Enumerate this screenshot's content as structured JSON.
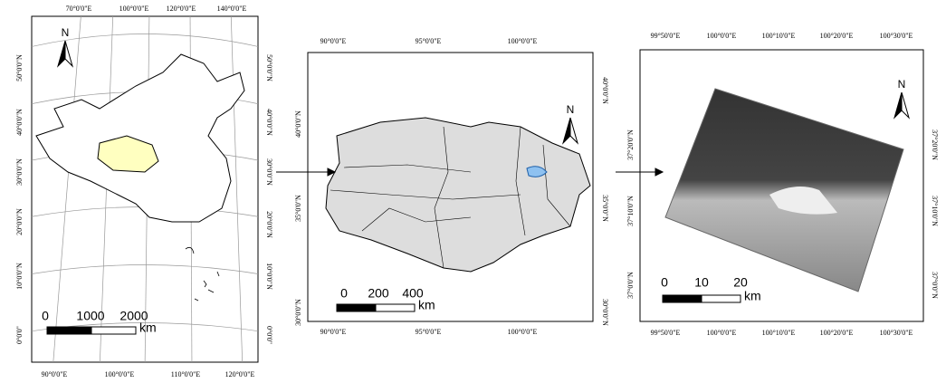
{
  "panels": [
    {
      "top_labels": [
        "70°0'0\"E",
        "100°0'0\"E",
        "120°0'0\"E",
        "140°0'0\"E"
      ],
      "bottom_labels": [
        "90°0'0\"E",
        "100°0'0\"E",
        "110°0'0\"E",
        "120°0'0\"E"
      ],
      "left_labels": [
        "50°0'0\"N",
        "40°0'0\"N",
        "30°0'0\"N",
        "20°0'0\"N",
        "10°0'0\"N",
        "0°0'0\""
      ],
      "right_labels": [
        "50°0'0\"N",
        "40°0'0\"N",
        "30°0'0\"N",
        "20°0'0\"N",
        "10°0'0\"N",
        "0°0'0\""
      ],
      "scale_labels": [
        "0",
        "1000",
        "2000"
      ],
      "scale_unit": "km",
      "north": "N"
    },
    {
      "top_labels": [
        "90°0'0\"E",
        "95°0'0\"E",
        "100°0'0\"E"
      ],
      "bottom_labels": [
        "90°0'0\"E",
        "95°0'0\"E",
        "100°0'0\"E"
      ],
      "left_labels": [
        "40°0'0\"N",
        "35°0'0\"N",
        "30°0'0\"N"
      ],
      "right_labels": [
        "40°0'0\"N",
        "35°0'0\"N",
        "30°0'0\"N"
      ],
      "scale_labels": [
        "0",
        "200",
        "400"
      ],
      "scale_unit": "km",
      "north": "N"
    },
    {
      "top_labels": [
        "99°50'0\"E",
        "100°0'0\"E",
        "100°10'0\"E",
        "100°20'0\"E",
        "100°30'0\"E"
      ],
      "bottom_labels": [
        "99°50'0\"E",
        "100°0'0\"E",
        "100°10'0\"E",
        "100°20'0\"E",
        "100°30'0\"E"
      ],
      "left_labels": [
        "37°20'0\"N",
        "37°10'0\"N",
        "37°0'0\"N"
      ],
      "right_labels": [
        "37°20'0\"N",
        "37°10'0\"N",
        "37°0'0\"N"
      ],
      "scale_labels": [
        "0",
        "10",
        "20"
      ],
      "scale_unit": "km",
      "north": "N"
    }
  ]
}
